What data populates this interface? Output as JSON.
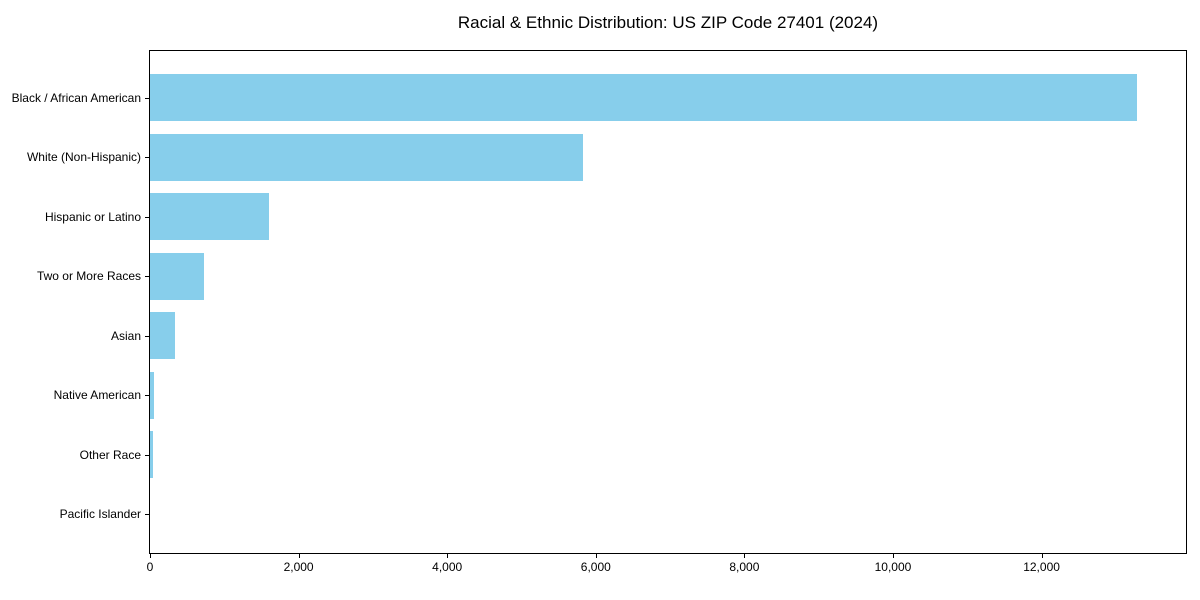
{
  "chart_data": {
    "type": "bar",
    "orientation": "horizontal",
    "title": "Racial & Ethnic Distribution: US ZIP Code 27401 (2024)",
    "categories": [
      "Black / African American",
      "White (Non-Hispanic)",
      "Hispanic or Latino",
      "Two or More Races",
      "Asian",
      "Native American",
      "Other Race",
      "Pacific Islander"
    ],
    "values": [
      13280,
      5830,
      1600,
      730,
      340,
      55,
      40,
      0
    ],
    "xlabel": "",
    "ylabel": "",
    "xlim": [
      0,
      13944
    ],
    "x_tick_values": [
      0,
      2000,
      4000,
      6000,
      8000,
      10000,
      12000
    ],
    "x_tick_labels": [
      "0",
      "2,000",
      "4,000",
      "6,000",
      "8,000",
      "10,000",
      "12,000"
    ],
    "bar_color": "#87CEEB",
    "axis_color": "#000000",
    "background_color": "#ffffff",
    "grid": false,
    "legend_position": "none"
  }
}
